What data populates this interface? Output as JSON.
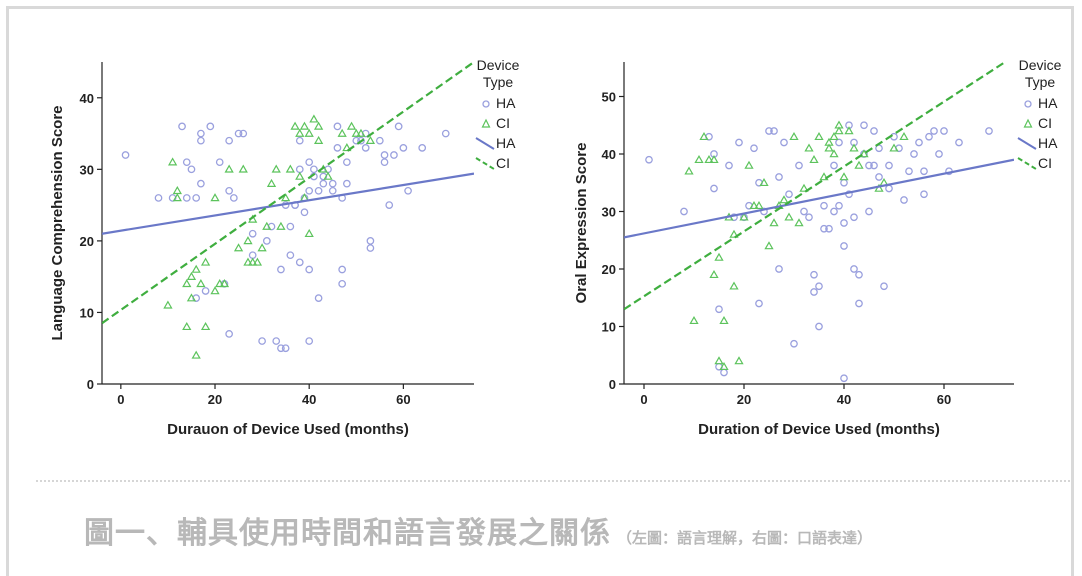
{
  "caption": {
    "main": "圖一、輔具使用時間和語言發展之關係",
    "sub": "（左圖：語言理解，右圖：口語表達）"
  },
  "colors": {
    "HA": "#6a78c8",
    "CI": "#3fae3f",
    "HA_marker": "#9aa0de",
    "CI_marker": "#5cc35c"
  },
  "chart_data": [
    {
      "type": "scatter",
      "xlabel": "Durauon of Device Used (months)",
      "ylabel": "Language Comprehension Score",
      "xlim": [
        -4,
        75
      ],
      "ylim": [
        0,
        45
      ],
      "xticks": [
        0,
        20,
        40,
        60
      ],
      "yticks": [
        0,
        10,
        20,
        30,
        40
      ],
      "legend": {
        "title": [
          "Device",
          "Type"
        ],
        "position": "right",
        "entries": [
          "HA",
          "CI",
          "HA",
          "CI"
        ]
      },
      "series": [
        {
          "name": "HA",
          "marker": "circle",
          "points": [
            [
              1,
              32
            ],
            [
              8,
              26
            ],
            [
              11,
              26
            ],
            [
              13,
              36
            ],
            [
              14,
              26
            ],
            [
              14,
              31
            ],
            [
              15,
              30
            ],
            [
              16,
              26
            ],
            [
              16,
              12
            ],
            [
              17,
              35
            ],
            [
              17,
              34
            ],
            [
              17,
              28
            ],
            [
              18,
              13
            ],
            [
              19,
              36
            ],
            [
              21,
              31
            ],
            [
              22,
              14
            ],
            [
              23,
              34
            ],
            [
              23,
              27
            ],
            [
              23,
              7
            ],
            [
              24,
              26
            ],
            [
              25,
              35
            ],
            [
              26,
              35
            ],
            [
              28,
              21
            ],
            [
              28,
              18
            ],
            [
              30,
              6
            ],
            [
              31,
              20
            ],
            [
              32,
              22
            ],
            [
              33,
              6
            ],
            [
              34,
              5
            ],
            [
              34,
              16
            ],
            [
              35,
              5
            ],
            [
              35,
              25
            ],
            [
              36,
              22
            ],
            [
              36,
              18
            ],
            [
              37,
              25
            ],
            [
              37,
              25
            ],
            [
              38,
              30
            ],
            [
              38,
              34
            ],
            [
              38,
              17
            ],
            [
              39,
              24
            ],
            [
              39,
              26
            ],
            [
              40,
              31
            ],
            [
              40,
              16
            ],
            [
              40,
              6
            ],
            [
              40,
              27
            ],
            [
              41,
              29
            ],
            [
              41,
              30
            ],
            [
              42,
              12
            ],
            [
              42,
              27
            ],
            [
              43,
              28
            ],
            [
              43,
              29
            ],
            [
              44,
              30
            ],
            [
              45,
              28
            ],
            [
              45,
              27
            ],
            [
              46,
              36
            ],
            [
              46,
              33
            ],
            [
              47,
              26
            ],
            [
              47,
              14
            ],
            [
              47,
              16
            ],
            [
              48,
              28
            ],
            [
              48,
              31
            ],
            [
              50,
              34
            ],
            [
              51,
              34
            ],
            [
              52,
              35
            ],
            [
              52,
              33
            ],
            [
              53,
              20
            ],
            [
              53,
              19
            ],
            [
              55,
              34
            ],
            [
              56,
              31
            ],
            [
              56,
              32
            ],
            [
              57,
              25
            ],
            [
              58,
              32
            ],
            [
              59,
              36
            ],
            [
              60,
              33
            ],
            [
              61,
              27
            ],
            [
              64,
              33
            ],
            [
              69,
              35
            ]
          ]
        },
        {
          "name": "CI",
          "marker": "triangle",
          "points": [
            [
              10,
              11
            ],
            [
              11,
              31
            ],
            [
              12,
              27
            ],
            [
              12,
              26
            ],
            [
              14,
              14
            ],
            [
              14,
              8
            ],
            [
              15,
              15
            ],
            [
              15,
              12
            ],
            [
              16,
              4
            ],
            [
              16,
              16
            ],
            [
              17,
              14
            ],
            [
              18,
              8
            ],
            [
              18,
              17
            ],
            [
              20,
              13
            ],
            [
              20,
              26
            ],
            [
              21,
              14
            ],
            [
              22,
              14
            ],
            [
              23,
              30
            ],
            [
              25,
              19
            ],
            [
              26,
              30
            ],
            [
              27,
              20
            ],
            [
              27,
              17
            ],
            [
              28,
              17
            ],
            [
              28,
              23
            ],
            [
              29,
              17
            ],
            [
              30,
              19
            ],
            [
              31,
              22
            ],
            [
              32,
              28
            ],
            [
              33,
              30
            ],
            [
              34,
              22
            ],
            [
              35,
              26
            ],
            [
              36,
              30
            ],
            [
              37,
              36
            ],
            [
              38,
              29
            ],
            [
              38,
              35
            ],
            [
              39,
              26
            ],
            [
              39,
              36
            ],
            [
              40,
              35
            ],
            [
              40,
              21
            ],
            [
              41,
              37
            ],
            [
              42,
              34
            ],
            [
              42,
              36
            ],
            [
              43,
              30
            ],
            [
              44,
              29
            ],
            [
              47,
              35
            ],
            [
              48,
              33
            ],
            [
              49,
              36
            ],
            [
              50,
              35
            ],
            [
              51,
              35
            ],
            [
              53,
              34
            ]
          ]
        }
      ],
      "fit_lines": [
        {
          "name": "HA",
          "style": "solid",
          "x": [
            -4,
            75
          ],
          "y": [
            21,
            29.4
          ]
        },
        {
          "name": "CI",
          "style": "dashed",
          "x": [
            -4,
            75
          ],
          "y": [
            8.5,
            45
          ]
        }
      ]
    },
    {
      "type": "scatter",
      "xlabel": "Duration of Device Used (months)",
      "ylabel": "Oral Expression Score",
      "xlim": [
        -4,
        74
      ],
      "ylim": [
        0,
        56
      ],
      "xticks": [
        0,
        20,
        40,
        60
      ],
      "yticks": [
        0,
        10,
        20,
        30,
        40,
        50
      ],
      "legend": {
        "title": [
          "Device",
          "Type"
        ],
        "position": "right",
        "entries": [
          "HA",
          "CI",
          "HA",
          "CI"
        ]
      },
      "series": [
        {
          "name": "HA",
          "marker": "circle",
          "points": [
            [
              1,
              39
            ],
            [
              8,
              30
            ],
            [
              13,
              43
            ],
            [
              14,
              34
            ],
            [
              14,
              40
            ],
            [
              15,
              13
            ],
            [
              15,
              3
            ],
            [
              16,
              2
            ],
            [
              17,
              38
            ],
            [
              18,
              29
            ],
            [
              19,
              42
            ],
            [
              20,
              29
            ],
            [
              21,
              31
            ],
            [
              22,
              41
            ],
            [
              23,
              14
            ],
            [
              23,
              35
            ],
            [
              24,
              30
            ],
            [
              25,
              44
            ],
            [
              26,
              44
            ],
            [
              27,
              36
            ],
            [
              27,
              20
            ],
            [
              28,
              42
            ],
            [
              29,
              33
            ],
            [
              30,
              7
            ],
            [
              31,
              38
            ],
            [
              32,
              30
            ],
            [
              33,
              29
            ],
            [
              34,
              16
            ],
            [
              34,
              19
            ],
            [
              35,
              17
            ],
            [
              35,
              10
            ],
            [
              36,
              31
            ],
            [
              36,
              27
            ],
            [
              37,
              27
            ],
            [
              38,
              38
            ],
            [
              38,
              30
            ],
            [
              39,
              42
            ],
            [
              39,
              31
            ],
            [
              40,
              35
            ],
            [
              40,
              28
            ],
            [
              40,
              24
            ],
            [
              40,
              1
            ],
            [
              41,
              45
            ],
            [
              41,
              33
            ],
            [
              42,
              29
            ],
            [
              42,
              42
            ],
            [
              42,
              20
            ],
            [
              43,
              14
            ],
            [
              43,
              19
            ],
            [
              44,
              45
            ],
            [
              44,
              40
            ],
            [
              45,
              38
            ],
            [
              45,
              30
            ],
            [
              46,
              44
            ],
            [
              46,
              38
            ],
            [
              47,
              41
            ],
            [
              47,
              36
            ],
            [
              48,
              17
            ],
            [
              49,
              34
            ],
            [
              49,
              38
            ],
            [
              50,
              43
            ],
            [
              51,
              41
            ],
            [
              52,
              32
            ],
            [
              53,
              37
            ],
            [
              54,
              40
            ],
            [
              55,
              42
            ],
            [
              56,
              37
            ],
            [
              56,
              33
            ],
            [
              57,
              43
            ],
            [
              58,
              44
            ],
            [
              59,
              40
            ],
            [
              60,
              44
            ],
            [
              61,
              37
            ],
            [
              63,
              42
            ],
            [
              69,
              44
            ]
          ]
        },
        {
          "name": "CI",
          "marker": "triangle",
          "points": [
            [
              9,
              37
            ],
            [
              10,
              11
            ],
            [
              11,
              39
            ],
            [
              12,
              43
            ],
            [
              13,
              39
            ],
            [
              14,
              39
            ],
            [
              14,
              19
            ],
            [
              15,
              4
            ],
            [
              15,
              22
            ],
            [
              16,
              3
            ],
            [
              16,
              11
            ],
            [
              17,
              29
            ],
            [
              18,
              17
            ],
            [
              18,
              26
            ],
            [
              19,
              4
            ],
            [
              20,
              29
            ],
            [
              21,
              38
            ],
            [
              22,
              31
            ],
            [
              23,
              31
            ],
            [
              24,
              35
            ],
            [
              25,
              24
            ],
            [
              26,
              28
            ],
            [
              27,
              31
            ],
            [
              28,
              32
            ],
            [
              29,
              29
            ],
            [
              30,
              43
            ],
            [
              31,
              28
            ],
            [
              32,
              34
            ],
            [
              33,
              41
            ],
            [
              34,
              39
            ],
            [
              35,
              43
            ],
            [
              36,
              36
            ],
            [
              37,
              42
            ],
            [
              37,
              41
            ],
            [
              38,
              43
            ],
            [
              38,
              40
            ],
            [
              39,
              44
            ],
            [
              39,
              45
            ],
            [
              40,
              36
            ],
            [
              41,
              44
            ],
            [
              42,
              41
            ],
            [
              43,
              38
            ],
            [
              44,
              40
            ],
            [
              47,
              34
            ],
            [
              48,
              35
            ],
            [
              50,
              41
            ],
            [
              52,
              43
            ]
          ]
        }
      ],
      "fit_lines": [
        {
          "name": "HA",
          "style": "solid",
          "x": [
            -4,
            74
          ],
          "y": [
            25.5,
            39
          ]
        },
        {
          "name": "CI",
          "style": "dashed",
          "x": [
            -4,
            74
          ],
          "y": [
            13,
            57
          ]
        }
      ]
    }
  ]
}
